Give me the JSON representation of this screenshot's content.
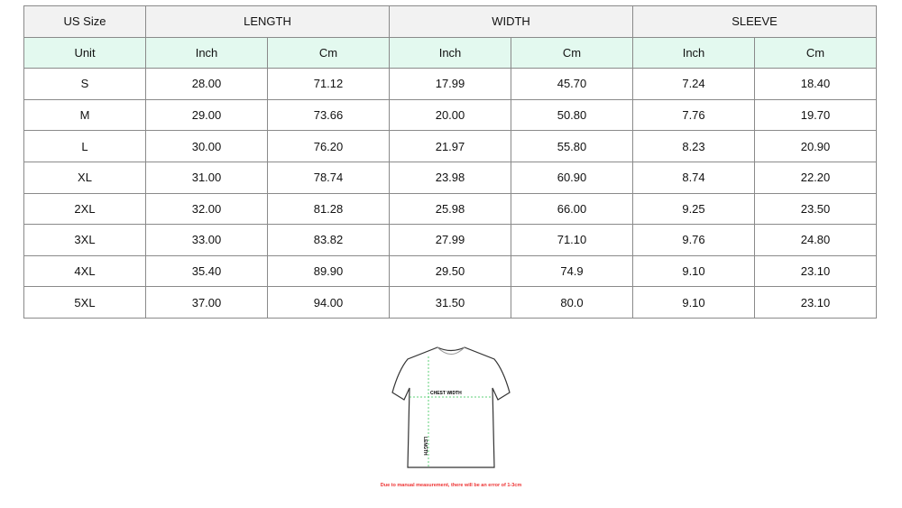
{
  "table": {
    "group_header": [
      "US Size",
      "LENGTH",
      "WIDTH",
      "SLEEVE"
    ],
    "unit_header": [
      "Unit",
      "Inch",
      "Cm",
      "Inch",
      "Cm",
      "Inch",
      "Cm"
    ],
    "rows": [
      [
        "S",
        "28.00",
        "71.12",
        "17.99",
        "45.70",
        "7.24",
        "18.40"
      ],
      [
        "M",
        "29.00",
        "73.66",
        "20.00",
        "50.80",
        "7.76",
        "19.70"
      ],
      [
        "L",
        "30.00",
        "76.20",
        "21.97",
        "55.80",
        "8.23",
        "20.90"
      ],
      [
        "XL",
        "31.00",
        "78.74",
        "23.98",
        "60.90",
        "8.74",
        "22.20"
      ],
      [
        "2XL",
        "32.00",
        "81.28",
        "25.98",
        "66.00",
        "9.25",
        "23.50"
      ],
      [
        "3XL",
        "33.00",
        "83.82",
        "27.99",
        "71.10",
        "9.76",
        "24.80"
      ],
      [
        "4XL",
        "35.40",
        "89.90",
        "29.50",
        "74.9",
        "9.10",
        "23.10"
      ],
      [
        "5XL",
        "37.00",
        "94.00",
        "31.50",
        "80.0",
        "9.10",
        "23.10"
      ]
    ]
  },
  "diagram": {
    "chest_label": "CHEST WIDTH",
    "length_label": "LENGTH",
    "guide_color": "#5fd07a"
  },
  "note": "Due to manual measurement, there will be an error of 1-3cm",
  "colors": {
    "header_bg": "#f2f2f2",
    "unit_row_bg": "#e3f9ef",
    "note_color": "#e33333"
  }
}
